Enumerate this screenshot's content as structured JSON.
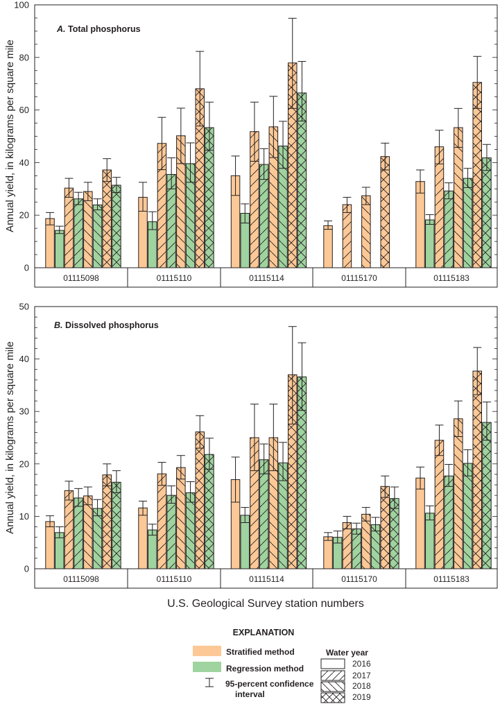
{
  "chart_data": [
    {
      "type": "bar",
      "title": "A. Total phosphorus",
      "panel_letter": "A.",
      "panel_name": "Total phosphorus",
      "xlabel": "U.S. Geological Survey station numbers",
      "ylabel": "Annual yield, in kilograms per square mile",
      "ylim": [
        0,
        100
      ],
      "yticks": [
        0,
        20,
        40,
        60,
        80,
        100
      ],
      "y_minor_step": 5,
      "categories": [
        "01115098",
        "01115110",
        "01115114",
        "01115170",
        "01115183"
      ],
      "years": [
        "2016",
        "2017",
        "2018",
        "2019"
      ],
      "series": [
        {
          "method": "Stratified",
          "year": "2016",
          "values": [
            18.7,
            26.8,
            35.0,
            16.0,
            32.8
          ],
          "ci_low": [
            16.3,
            21.5,
            27.5,
            14.6,
            28.4
          ],
          "ci_high": [
            21.0,
            32.5,
            42.5,
            17.8,
            37.2
          ]
        },
        {
          "method": "Regression",
          "year": "2016",
          "values": [
            14.2,
            17.5,
            20.7,
            null,
            18.2
          ],
          "ci_low": [
            13.0,
            14.5,
            17.0,
            null,
            16.5
          ],
          "ci_high": [
            15.8,
            21.3,
            24.3,
            null,
            20.2
          ]
        },
        {
          "method": "Stratified",
          "year": "2017",
          "values": [
            30.3,
            47.3,
            51.8,
            24.0,
            46.0
          ],
          "ci_low": [
            26.8,
            37.3,
            40.5,
            21.0,
            39.5
          ],
          "ci_high": [
            34.0,
            57.2,
            63.0,
            26.8,
            52.3
          ]
        },
        {
          "method": "Regression",
          "year": "2017",
          "values": [
            26.2,
            35.5,
            39.3,
            null,
            29.2
          ],
          "ci_low": [
            24.0,
            30.0,
            33.6,
            null,
            26.2
          ],
          "ci_high": [
            28.7,
            41.8,
            45.3,
            null,
            32.3
          ]
        },
        {
          "method": "Stratified",
          "year": "2018",
          "values": [
            29.0,
            50.2,
            53.6,
            27.4,
            53.3
          ],
          "ci_low": [
            25.5,
            39.6,
            41.9,
            24.0,
            45.8
          ],
          "ci_high": [
            32.5,
            60.7,
            65.2,
            30.6,
            60.6
          ]
        },
        {
          "method": "Regression",
          "year": "2018",
          "values": [
            23.9,
            39.6,
            46.3,
            null,
            34.0
          ],
          "ci_low": [
            22.0,
            32.5,
            37.8,
            null,
            30.5
          ],
          "ci_high": [
            26.2,
            47.5,
            55.7,
            null,
            37.8
          ]
        },
        {
          "method": "Stratified",
          "year": "2019",
          "values": [
            37.2,
            68.1,
            77.9,
            42.3,
            70.5
          ],
          "ci_low": [
            32.8,
            53.9,
            60.6,
            37.2,
            60.6
          ],
          "ci_high": [
            41.5,
            82.3,
            94.9,
            47.4,
            80.4
          ]
        },
        {
          "method": "Regression",
          "year": "2019",
          "values": [
            31.4,
            53.3,
            66.5,
            null,
            41.8
          ],
          "ci_low": [
            28.6,
            44.7,
            55.8,
            null,
            37.0
          ],
          "ci_high": [
            34.4,
            63.0,
            78.5,
            null,
            46.9
          ]
        }
      ]
    },
    {
      "type": "bar",
      "title": "B. Dissolved phosphorus",
      "panel_letter": "B.",
      "panel_name": "Dissolved phosphorus",
      "xlabel": "U.S. Geological Survey station numbers",
      "ylabel": "Annual yield, in kilograms per square mile",
      "ylim": [
        0,
        50
      ],
      "yticks": [
        0,
        10,
        20,
        30,
        40,
        50
      ],
      "y_minor_step": 2,
      "categories": [
        "01115098",
        "01115110",
        "01115114",
        "01115170",
        "01115183"
      ],
      "years": [
        "2016",
        "2017",
        "2018",
        "2019"
      ],
      "series": [
        {
          "method": "Stratified",
          "year": "2016",
          "values": [
            9.0,
            11.6,
            17.0,
            6.1,
            17.3
          ],
          "ci_low": [
            8.0,
            10.2,
            12.7,
            5.4,
            15.2
          ],
          "ci_high": [
            10.1,
            12.9,
            21.3,
            6.9,
            19.4
          ]
        },
        {
          "method": "Regression",
          "year": "2016",
          "values": [
            6.9,
            7.4,
            10.2,
            6.0,
            10.6
          ],
          "ci_low": [
            5.9,
            6.4,
            8.8,
            4.9,
            9.3
          ],
          "ci_high": [
            8.0,
            8.5,
            11.7,
            7.2,
            12.0
          ]
        },
        {
          "method": "Stratified",
          "year": "2017",
          "values": [
            14.9,
            18.1,
            25.0,
            8.8,
            24.5
          ],
          "ci_low": [
            13.1,
            15.9,
            18.7,
            7.6,
            21.6
          ],
          "ci_high": [
            16.7,
            20.3,
            31.4,
            10.0,
            27.4
          ]
        },
        {
          "method": "Regression",
          "year": "2017",
          "values": [
            13.5,
            14.0,
            20.8,
            7.6,
            17.7
          ],
          "ci_low": [
            11.9,
            12.5,
            18.1,
            6.6,
            15.7
          ],
          "ci_high": [
            15.3,
            15.8,
            23.8,
            8.7,
            19.9
          ]
        },
        {
          "method": "Stratified",
          "year": "2018",
          "values": [
            13.9,
            19.3,
            25.0,
            10.4,
            28.6
          ],
          "ci_low": [
            12.2,
            17.1,
            18.7,
            9.1,
            25.2
          ],
          "ci_high": [
            15.6,
            21.6,
            31.4,
            11.7,
            32.0
          ]
        },
        {
          "method": "Regression",
          "year": "2018",
          "values": [
            11.5,
            14.5,
            20.2,
            8.4,
            20.1
          ],
          "ci_low": [
            10.1,
            12.7,
            16.8,
            7.2,
            17.7
          ],
          "ci_high": [
            13.2,
            16.6,
            24.1,
            9.8,
            22.7
          ]
        },
        {
          "method": "Stratified",
          "year": "2019",
          "values": [
            17.9,
            26.1,
            37.0,
            15.7,
            37.7
          ],
          "ci_low": [
            15.8,
            23.0,
            27.6,
            13.6,
            33.2
          ],
          "ci_high": [
            20.0,
            29.2,
            46.2,
            17.7,
            42.2
          ]
        },
        {
          "method": "Regression",
          "year": "2019",
          "values": [
            16.5,
            21.8,
            36.6,
            13.4,
            27.9
          ],
          "ci_low": [
            14.5,
            19.0,
            30.2,
            11.5,
            24.5
          ],
          "ci_high": [
            18.7,
            24.9,
            43.1,
            15.6,
            31.8
          ]
        }
      ]
    }
  ],
  "colors": {
    "stratified": "#fcc896",
    "regression": "#9fd39f",
    "bar_stroke": "#231f20",
    "ci_stroke": "#231f20",
    "axis": "#231f20"
  },
  "legend": {
    "title": "EXPLANATION",
    "stratified_label": "Stratified method",
    "regression_label": "Regression method",
    "ci_label_line1": "95-percent confidence",
    "ci_label_line2": "interval",
    "water_year_title": "Water year",
    "years": [
      "2016",
      "2017",
      "2018",
      "2019"
    ]
  }
}
